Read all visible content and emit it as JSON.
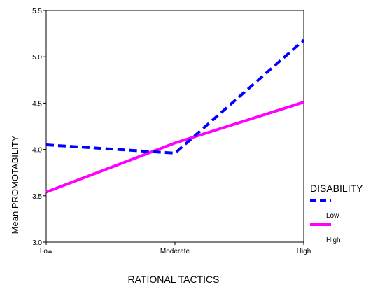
{
  "chart_data": {
    "type": "line",
    "xlabel": "RATIONAL TACTICS",
    "ylabel": "Mean PROMOTABILITY",
    "categories": [
      "Low",
      "Moderate",
      "High"
    ],
    "ylim": [
      3.0,
      5.5
    ],
    "yticks": [
      "3.0",
      "3.5",
      "4.0",
      "4.5",
      "5.0",
      "5.5"
    ],
    "grid": false,
    "legend": {
      "title": "DISABILITY",
      "placement": "right"
    },
    "series": [
      {
        "name": "Low",
        "values": [
          4.05,
          3.96,
          5.18
        ],
        "color": "#0000ff",
        "style": "dashed"
      },
      {
        "name": "High",
        "values": [
          3.54,
          4.07,
          4.51
        ],
        "color": "#ff00ff",
        "style": "solid"
      }
    ]
  }
}
